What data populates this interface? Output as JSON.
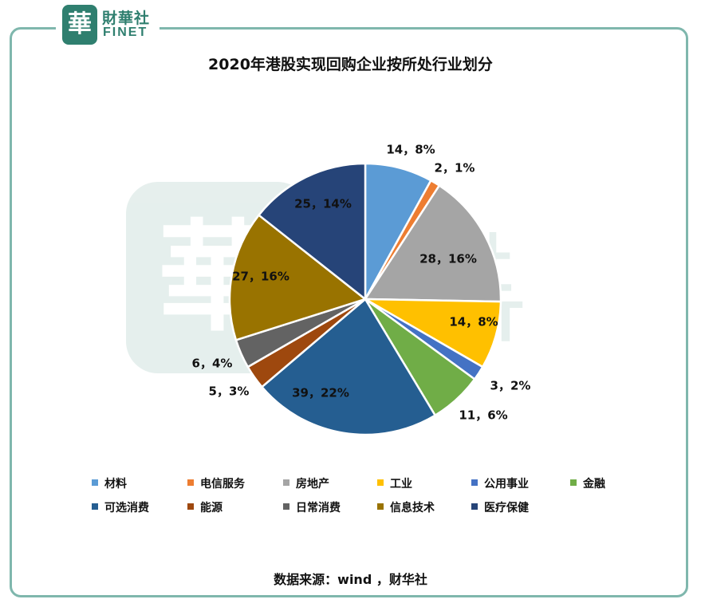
{
  "brand": {
    "seal_char": "華",
    "name_cn": "財華社",
    "name_en": "FINET"
  },
  "chart_data": {
    "type": "pie",
    "title": "2020年港股实现回购企业按所处行业划分",
    "categories": [
      "材料",
      "电信服务",
      "房地产",
      "工业",
      "公用事业",
      "金融",
      "可选消费",
      "能源",
      "日常消费",
      "信息技术",
      "医疗保健"
    ],
    "values": [
      14,
      2,
      28,
      14,
      3,
      11,
      39,
      5,
      6,
      27,
      25
    ],
    "percents": [
      8,
      1,
      16,
      8,
      2,
      6,
      22,
      3,
      4,
      16,
      14
    ],
    "data_labels": [
      "14，8%",
      "2，1%",
      "28，16%",
      "14，8%",
      "3，2%",
      "11，6%",
      "39，22%",
      "5，3%",
      "6，4%",
      "27，16%",
      "25，14%"
    ],
    "colors": [
      "#5b9bd5",
      "#ed7d31",
      "#a5a5a5",
      "#ffc000",
      "#4472c4",
      "#70ad47",
      "#255e91",
      "#9e480e",
      "#636363",
      "#997300",
      "#264478"
    ],
    "legend_position": "bottom"
  },
  "source": "数据来源：wind ，财华社"
}
